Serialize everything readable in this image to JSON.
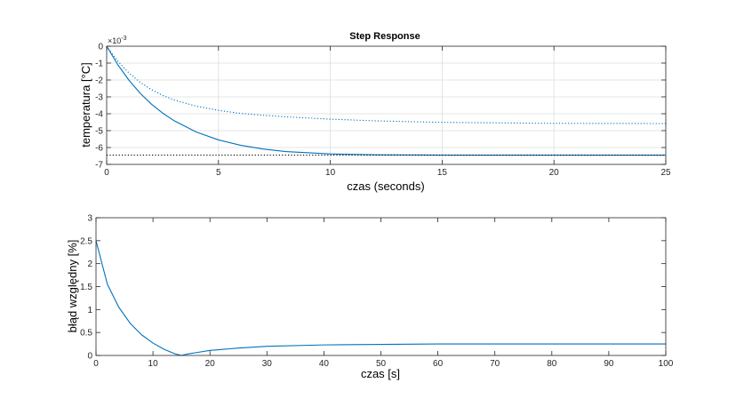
{
  "chart_data": [
    {
      "type": "line",
      "title": "Step Response",
      "xlabel": "czas  (seconds)",
      "ylabel": "temperatura [°C]",
      "y_multiplier": "×10",
      "y_multiplier_exp": "-3",
      "xlim": [
        0,
        25
      ],
      "ylim": [
        -7,
        0
      ],
      "xticks": [
        "0",
        "5",
        "10",
        "15",
        "20",
        "25"
      ],
      "yticks": [
        "0",
        "-1",
        "-2",
        "-3",
        "-4",
        "-5",
        "-6",
        "-7"
      ],
      "grid": true,
      "series": [
        {
          "style": "solid",
          "color": "#0072bd",
          "x": [
            0,
            0.5,
            1,
            1.5,
            2,
            2.5,
            3,
            4,
            5,
            6,
            7,
            8,
            10,
            12,
            15,
            20,
            25
          ],
          "y": [
            0,
            -1.1,
            -2.02,
            -2.79,
            -3.43,
            -3.96,
            -4.4,
            -5.08,
            -5.55,
            -5.87,
            -6.09,
            -6.24,
            -6.38,
            -6.43,
            -6.45,
            -6.45,
            -6.45
          ]
        },
        {
          "style": "dotted",
          "color": "#0072bd",
          "x": [
            0,
            0.5,
            1,
            1.5,
            2,
            2.5,
            3,
            4,
            5,
            6,
            7,
            8,
            10,
            12,
            15,
            20,
            25
          ],
          "y": [
            0,
            -0.89,
            -1.59,
            -2.14,
            -2.57,
            -2.91,
            -3.18,
            -3.55,
            -3.8,
            -3.98,
            -4.09,
            -4.18,
            -4.32,
            -4.42,
            -4.51,
            -4.57,
            -4.58
          ]
        },
        {
          "style": "dotted",
          "color": "#000000",
          "x": [
            0,
            25
          ],
          "y": [
            -6.45,
            -6.45
          ]
        }
      ]
    },
    {
      "type": "line",
      "title": "",
      "xlabel": "czas [s]",
      "ylabel": "błąd względny [%]",
      "xlim": [
        0,
        100
      ],
      "ylim": [
        0,
        3
      ],
      "xticks": [
        "0",
        "10",
        "20",
        "30",
        "40",
        "50",
        "60",
        "70",
        "80",
        "90",
        "100"
      ],
      "yticks": [
        "0",
        "0.5",
        "1",
        "1.5",
        "2",
        "2.5",
        "3"
      ],
      "grid": false,
      "series": [
        {
          "style": "solid",
          "color": "#0072bd",
          "x": [
            0,
            2,
            4,
            6,
            8,
            10,
            12,
            14,
            15,
            16,
            18,
            20,
            25,
            30,
            40,
            50,
            60,
            70,
            80,
            90,
            100
          ],
          "y": [
            2.5,
            1.55,
            1.05,
            0.7,
            0.45,
            0.27,
            0.13,
            0.03,
            0.0,
            0.03,
            0.07,
            0.11,
            0.16,
            0.2,
            0.23,
            0.24,
            0.25,
            0.25,
            0.25,
            0.25,
            0.25
          ]
        }
      ]
    }
  ]
}
